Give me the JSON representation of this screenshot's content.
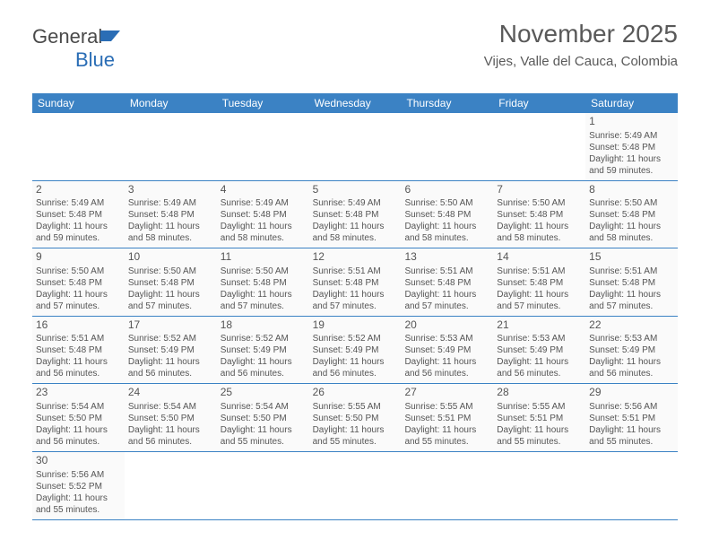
{
  "logo": {
    "text_general": "General",
    "text_blue": "Blue"
  },
  "header": {
    "month_title": "November 2025",
    "location": "Vijes, Valle del Cauca, Colombia"
  },
  "colors": {
    "header_bar": "#3b82c4",
    "header_text": "#ffffff",
    "border": "#3b82c4",
    "cell_bg": "#fafafa",
    "text": "#555555",
    "title_text": "#595959"
  },
  "weekdays": [
    "Sunday",
    "Monday",
    "Tuesday",
    "Wednesday",
    "Thursday",
    "Friday",
    "Saturday"
  ],
  "weeks": [
    [
      null,
      null,
      null,
      null,
      null,
      null,
      {
        "n": "1",
        "sr": "Sunrise: 5:49 AM",
        "ss": "Sunset: 5:48 PM",
        "dl": "Daylight: 11 hours and 59 minutes."
      }
    ],
    [
      {
        "n": "2",
        "sr": "Sunrise: 5:49 AM",
        "ss": "Sunset: 5:48 PM",
        "dl": "Daylight: 11 hours and 59 minutes."
      },
      {
        "n": "3",
        "sr": "Sunrise: 5:49 AM",
        "ss": "Sunset: 5:48 PM",
        "dl": "Daylight: 11 hours and 58 minutes."
      },
      {
        "n": "4",
        "sr": "Sunrise: 5:49 AM",
        "ss": "Sunset: 5:48 PM",
        "dl": "Daylight: 11 hours and 58 minutes."
      },
      {
        "n": "5",
        "sr": "Sunrise: 5:49 AM",
        "ss": "Sunset: 5:48 PM",
        "dl": "Daylight: 11 hours and 58 minutes."
      },
      {
        "n": "6",
        "sr": "Sunrise: 5:50 AM",
        "ss": "Sunset: 5:48 PM",
        "dl": "Daylight: 11 hours and 58 minutes."
      },
      {
        "n": "7",
        "sr": "Sunrise: 5:50 AM",
        "ss": "Sunset: 5:48 PM",
        "dl": "Daylight: 11 hours and 58 minutes."
      },
      {
        "n": "8",
        "sr": "Sunrise: 5:50 AM",
        "ss": "Sunset: 5:48 PM",
        "dl": "Daylight: 11 hours and 58 minutes."
      }
    ],
    [
      {
        "n": "9",
        "sr": "Sunrise: 5:50 AM",
        "ss": "Sunset: 5:48 PM",
        "dl": "Daylight: 11 hours and 57 minutes."
      },
      {
        "n": "10",
        "sr": "Sunrise: 5:50 AM",
        "ss": "Sunset: 5:48 PM",
        "dl": "Daylight: 11 hours and 57 minutes."
      },
      {
        "n": "11",
        "sr": "Sunrise: 5:50 AM",
        "ss": "Sunset: 5:48 PM",
        "dl": "Daylight: 11 hours and 57 minutes."
      },
      {
        "n": "12",
        "sr": "Sunrise: 5:51 AM",
        "ss": "Sunset: 5:48 PM",
        "dl": "Daylight: 11 hours and 57 minutes."
      },
      {
        "n": "13",
        "sr": "Sunrise: 5:51 AM",
        "ss": "Sunset: 5:48 PM",
        "dl": "Daylight: 11 hours and 57 minutes."
      },
      {
        "n": "14",
        "sr": "Sunrise: 5:51 AM",
        "ss": "Sunset: 5:48 PM",
        "dl": "Daylight: 11 hours and 57 minutes."
      },
      {
        "n": "15",
        "sr": "Sunrise: 5:51 AM",
        "ss": "Sunset: 5:48 PM",
        "dl": "Daylight: 11 hours and 57 minutes."
      }
    ],
    [
      {
        "n": "16",
        "sr": "Sunrise: 5:51 AM",
        "ss": "Sunset: 5:48 PM",
        "dl": "Daylight: 11 hours and 56 minutes."
      },
      {
        "n": "17",
        "sr": "Sunrise: 5:52 AM",
        "ss": "Sunset: 5:49 PM",
        "dl": "Daylight: 11 hours and 56 minutes."
      },
      {
        "n": "18",
        "sr": "Sunrise: 5:52 AM",
        "ss": "Sunset: 5:49 PM",
        "dl": "Daylight: 11 hours and 56 minutes."
      },
      {
        "n": "19",
        "sr": "Sunrise: 5:52 AM",
        "ss": "Sunset: 5:49 PM",
        "dl": "Daylight: 11 hours and 56 minutes."
      },
      {
        "n": "20",
        "sr": "Sunrise: 5:53 AM",
        "ss": "Sunset: 5:49 PM",
        "dl": "Daylight: 11 hours and 56 minutes."
      },
      {
        "n": "21",
        "sr": "Sunrise: 5:53 AM",
        "ss": "Sunset: 5:49 PM",
        "dl": "Daylight: 11 hours and 56 minutes."
      },
      {
        "n": "22",
        "sr": "Sunrise: 5:53 AM",
        "ss": "Sunset: 5:49 PM",
        "dl": "Daylight: 11 hours and 56 minutes."
      }
    ],
    [
      {
        "n": "23",
        "sr": "Sunrise: 5:54 AM",
        "ss": "Sunset: 5:50 PM",
        "dl": "Daylight: 11 hours and 56 minutes."
      },
      {
        "n": "24",
        "sr": "Sunrise: 5:54 AM",
        "ss": "Sunset: 5:50 PM",
        "dl": "Daylight: 11 hours and 56 minutes."
      },
      {
        "n": "25",
        "sr": "Sunrise: 5:54 AM",
        "ss": "Sunset: 5:50 PM",
        "dl": "Daylight: 11 hours and 55 minutes."
      },
      {
        "n": "26",
        "sr": "Sunrise: 5:55 AM",
        "ss": "Sunset: 5:50 PM",
        "dl": "Daylight: 11 hours and 55 minutes."
      },
      {
        "n": "27",
        "sr": "Sunrise: 5:55 AM",
        "ss": "Sunset: 5:51 PM",
        "dl": "Daylight: 11 hours and 55 minutes."
      },
      {
        "n": "28",
        "sr": "Sunrise: 5:55 AM",
        "ss": "Sunset: 5:51 PM",
        "dl": "Daylight: 11 hours and 55 minutes."
      },
      {
        "n": "29",
        "sr": "Sunrise: 5:56 AM",
        "ss": "Sunset: 5:51 PM",
        "dl": "Daylight: 11 hours and 55 minutes."
      }
    ],
    [
      {
        "n": "30",
        "sr": "Sunrise: 5:56 AM",
        "ss": "Sunset: 5:52 PM",
        "dl": "Daylight: 11 hours and 55 minutes."
      },
      null,
      null,
      null,
      null,
      null,
      null
    ]
  ]
}
